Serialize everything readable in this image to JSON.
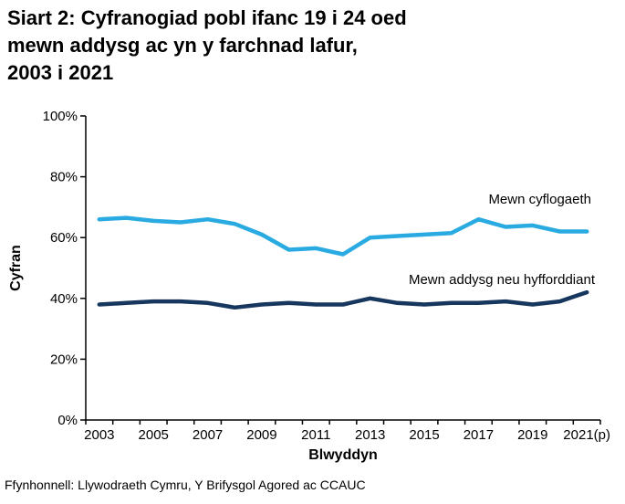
{
  "page": {
    "title_lines": [
      "Siart 2: Cyfranogiad pobl ifanc 19 i 24 oed",
      "mewn addysg ac yn y farchnad lafur,",
      "2003 i 2021"
    ],
    "source": "Ffynhonnell: Llywodraeth Cymru, Y Brifysgol Agored ac CCAUC"
  },
  "chart_data": {
    "type": "line",
    "title": "Siart 2: Cyfranogiad pobl ifanc 19 i 24 oed mewn addysg ac yn y farchnad lafur, 2003 i 2021",
    "xlabel": "Blwyddyn",
    "ylabel": "Cyfran",
    "ylim": [
      0,
      100
    ],
    "ytick_step": 20,
    "ytick_labels": [
      "0%",
      "20%",
      "40%",
      "60%",
      "80%",
      "100%"
    ],
    "x": [
      2003,
      2004,
      2005,
      2006,
      2007,
      2008,
      2009,
      2010,
      2011,
      2012,
      2013,
      2014,
      2015,
      2016,
      2017,
      2018,
      2019,
      2020,
      2021
    ],
    "xtick_labels": [
      "2003",
      "2005",
      "2007",
      "2009",
      "2011",
      "2013",
      "2015",
      "2017",
      "2019",
      "2021(p)"
    ],
    "grid": false,
    "legend_position": "inline-annotations",
    "axis_color": "#000000",
    "series": [
      {
        "name": "Mewn cyflogaeth",
        "color": "#29ABE2",
        "values": [
          66,
          66.5,
          65.5,
          65,
          66,
          64.5,
          61,
          56,
          56.5,
          54.5,
          60,
          60.5,
          61,
          61.5,
          66,
          63.5,
          64,
          62,
          62
        ]
      },
      {
        "name": "Mewn addysg neu hyfforddiant",
        "color": "#17375E",
        "values": [
          38,
          38.5,
          39,
          39,
          38.5,
          37,
          38,
          38.5,
          38,
          38,
          40,
          38.5,
          38,
          38.5,
          38.5,
          39,
          38,
          39,
          42
        ]
      }
    ]
  }
}
